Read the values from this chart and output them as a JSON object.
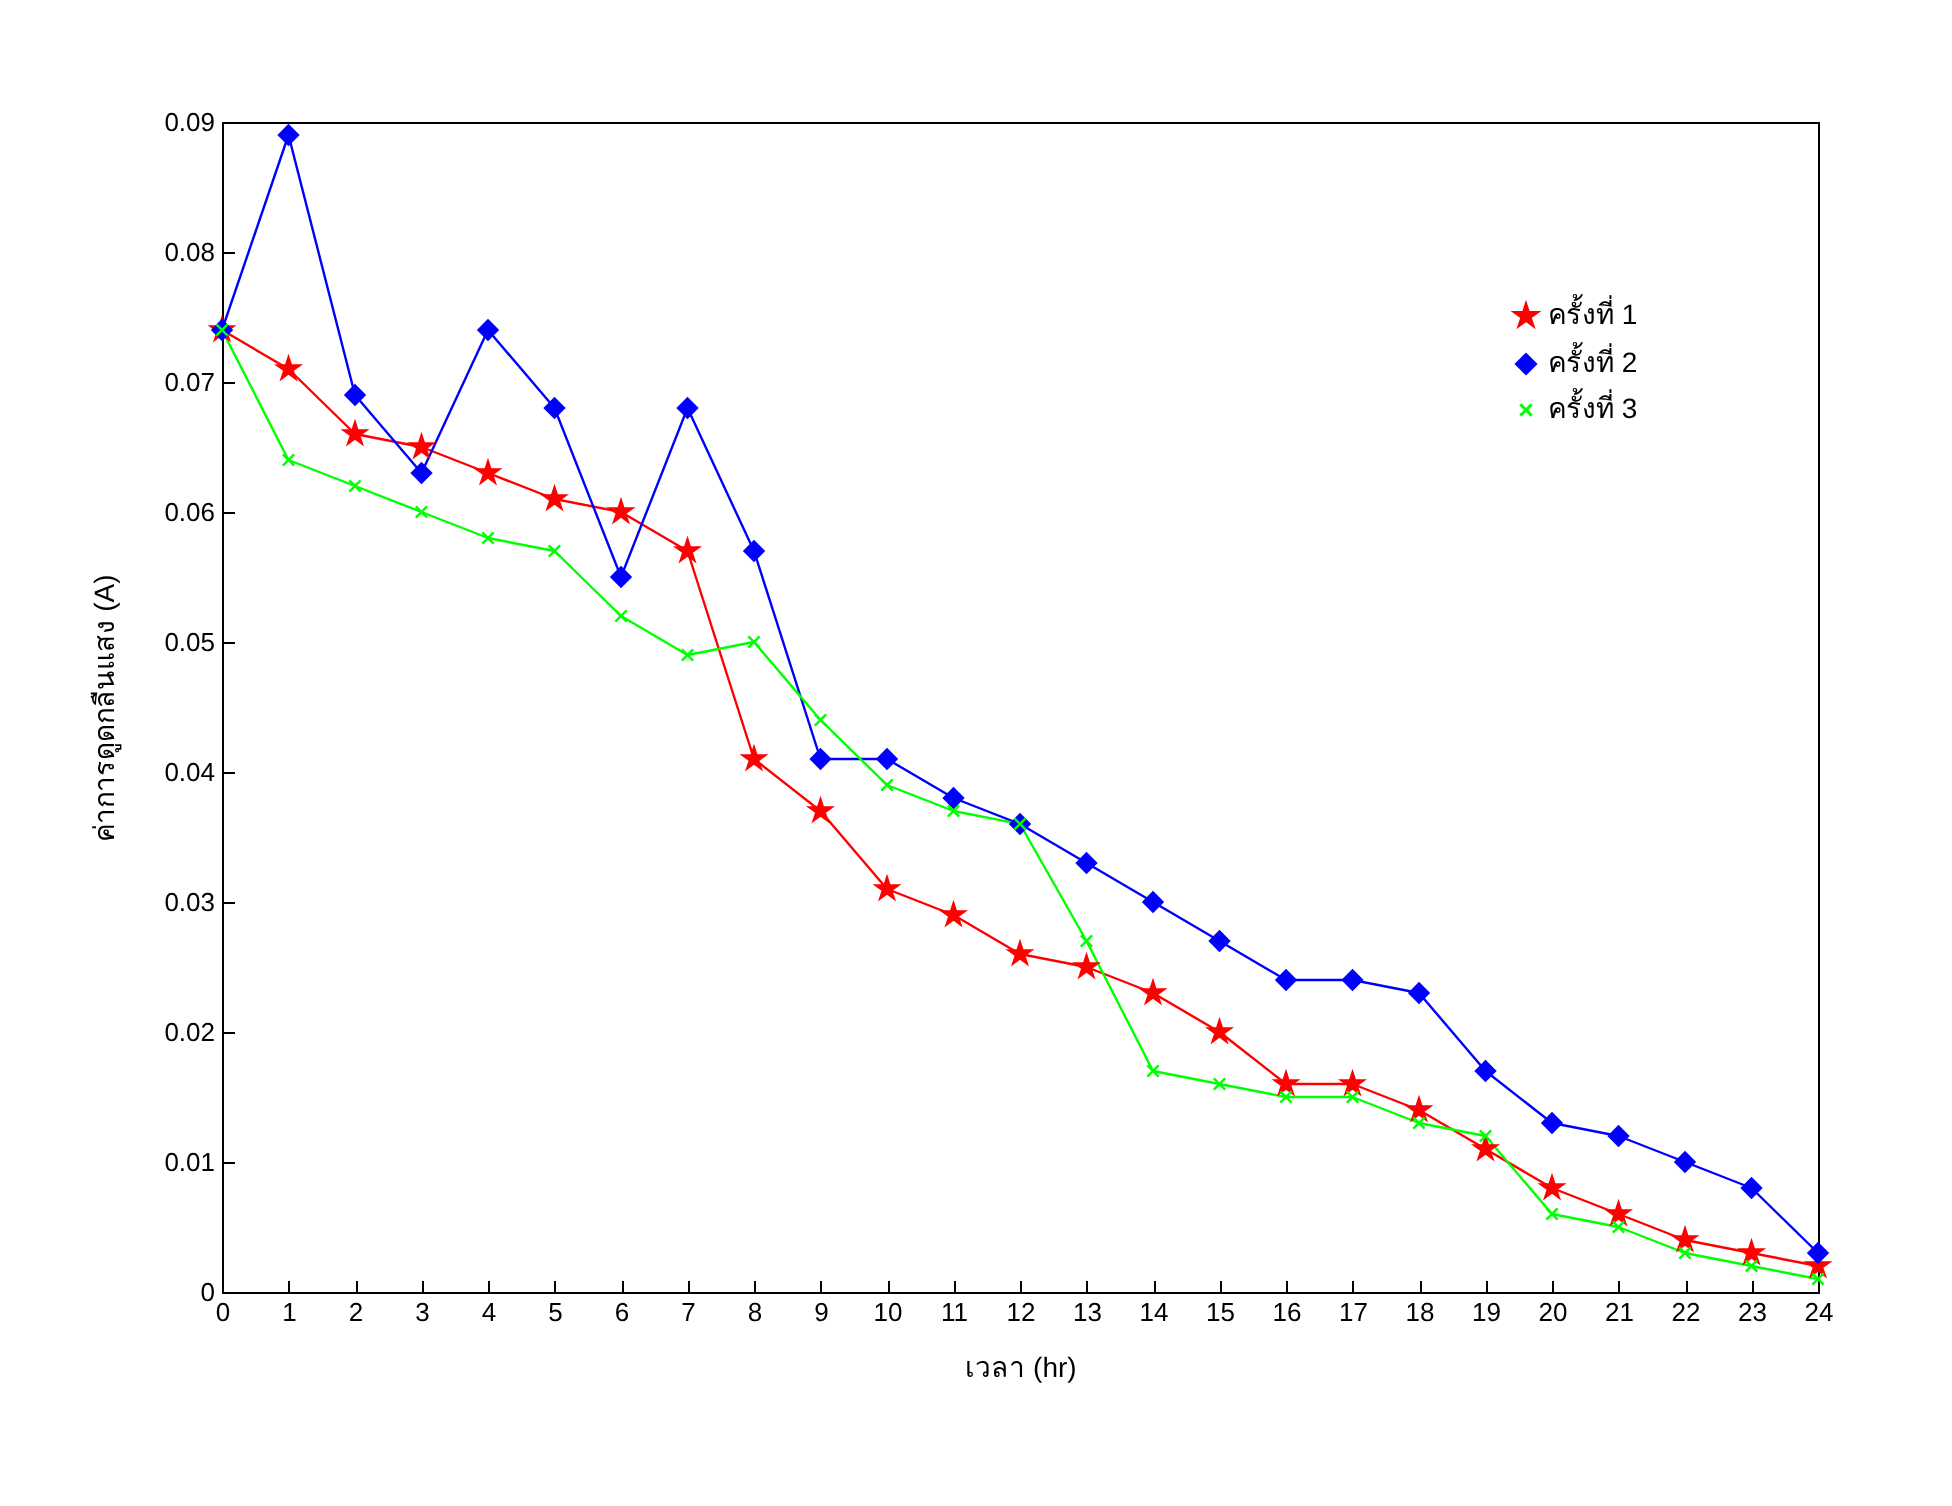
{
  "chart_data": {
    "type": "line",
    "xlabel": "เวลา (hr)",
    "ylabel": "ค่าการดูดกลืนแสง (A)",
    "x": [
      0,
      1,
      2,
      3,
      4,
      5,
      6,
      7,
      8,
      9,
      10,
      11,
      12,
      13,
      14,
      15,
      16,
      17,
      18,
      19,
      20,
      21,
      22,
      23,
      24
    ],
    "xlim": [
      0,
      24
    ],
    "xticks": [
      0,
      1,
      2,
      3,
      4,
      5,
      6,
      7,
      8,
      9,
      10,
      11,
      12,
      13,
      14,
      15,
      16,
      17,
      18,
      19,
      20,
      21,
      22,
      23,
      24
    ],
    "ylim": [
      0,
      0.09
    ],
    "yticks": [
      0,
      0.01,
      0.02,
      0.03,
      0.04,
      0.05,
      0.06,
      0.07,
      0.08,
      0.09
    ],
    "grid": false,
    "legend": "top right",
    "line_style": "solid",
    "series": [
      {
        "name": "ครั้งที่ 1",
        "color": "#ff0000",
        "marker": "star",
        "values": [
          0.074,
          0.071,
          0.066,
          0.065,
          0.063,
          0.061,
          0.06,
          0.057,
          0.041,
          0.037,
          0.031,
          0.029,
          0.026,
          0.025,
          0.023,
          0.02,
          0.016,
          0.016,
          0.014,
          0.011,
          0.008,
          0.006,
          0.004,
          0.003,
          0.002
        ]
      },
      {
        "name": "ครั้งที่ 2",
        "color": "#0000ff",
        "marker": "diamond",
        "values": [
          0.074,
          0.089,
          0.069,
          0.063,
          0.074,
          0.068,
          0.055,
          0.068,
          0.057,
          0.041,
          0.041,
          0.038,
          0.036,
          0.033,
          0.03,
          0.027,
          0.024,
          0.024,
          0.023,
          0.017,
          0.013,
          0.012,
          0.01,
          0.008,
          0.003
        ]
      },
      {
        "name": "ครั้งที่ 3",
        "color": "#00ff00",
        "marker": "cross",
        "values": [
          0.074,
          0.064,
          0.062,
          0.06,
          0.058,
          0.057,
          0.052,
          0.049,
          0.05,
          0.044,
          0.039,
          0.037,
          0.036,
          0.027,
          0.017,
          0.016,
          0.015,
          0.015,
          0.013,
          0.012,
          0.006,
          0.005,
          0.003,
          0.002,
          0.001
        ]
      }
    ]
  }
}
